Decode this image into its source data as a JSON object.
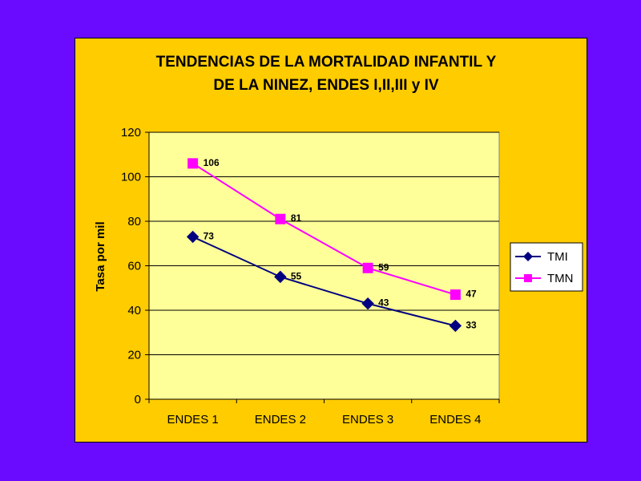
{
  "chart_data": {
    "type": "line",
    "title_lines": [
      "TENDENCIAS DE LA MORTALIDAD INFANTIL Y",
      "DE LA NINEZ, ENDES I,II,III y IV"
    ],
    "ylabel": "Tasa por mil",
    "categories": [
      "ENDES 1",
      "ENDES 2",
      "ENDES 3",
      "ENDES 4"
    ],
    "ylim": [
      0,
      120
    ],
    "yticks": [
      0,
      20,
      40,
      60,
      80,
      100,
      120
    ],
    "grid": true,
    "legend_position": "right",
    "series": [
      {
        "name": "TMI",
        "values": [
          73,
          55,
          43,
          33
        ],
        "color": "#000080",
        "marker": "diamond"
      },
      {
        "name": "TMN",
        "values": [
          106,
          81,
          59,
          47
        ],
        "color": "#FF00FF",
        "marker": "square"
      }
    ]
  },
  "colors": {
    "background": "#6A0BFF",
    "frame": "#FFCC00",
    "plot_area": "#FFFF99"
  }
}
